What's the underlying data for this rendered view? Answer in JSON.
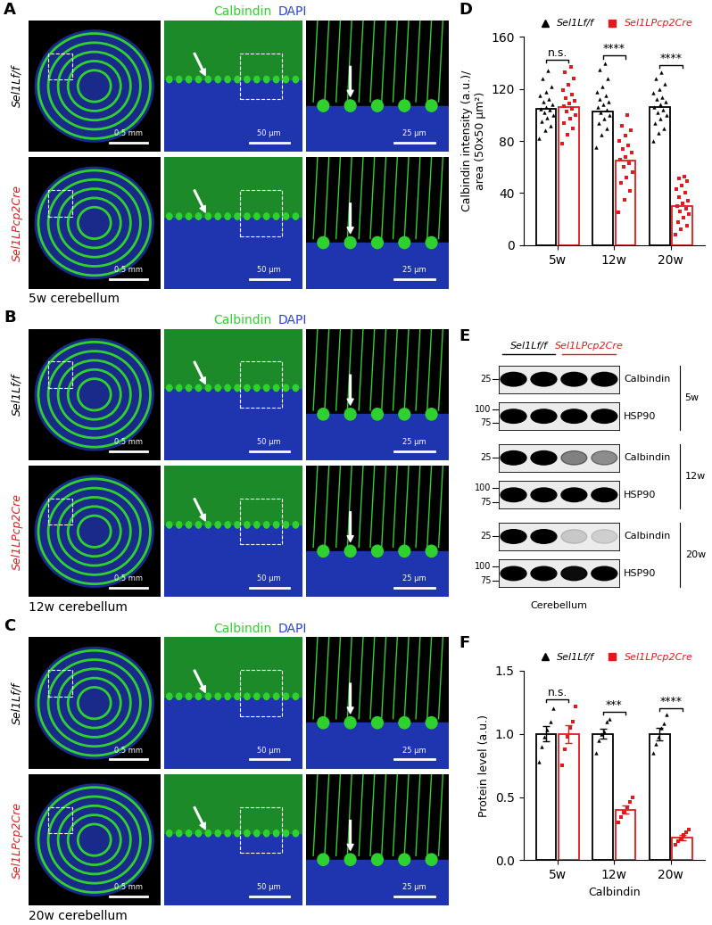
{
  "panel_letters": {
    "images": [
      "A",
      "B",
      "C"
    ],
    "blot": "E"
  },
  "image_panels": [
    {
      "stain": [
        {
          "text": "Calbindin",
          "color": "#2fd12f"
        },
        {
          "text": "DAPI",
          "color": "#2b3fe0"
        }
      ],
      "rows": [
        {
          "label": "Sel1Lf/f",
          "color": "#000000"
        },
        {
          "label": "Sel1LPcp2Cre",
          "color": "#e31a1c"
        }
      ],
      "scale_bars": [
        "0.5 mm",
        "50 μm",
        "25 μm"
      ],
      "caption": "5w cerebellum"
    },
    {
      "stain": [
        {
          "text": "Calbindin",
          "color": "#2fd12f"
        },
        {
          "text": "DAPI",
          "color": "#2b3fe0"
        }
      ],
      "rows": [
        {
          "label": "Sel1Lf/f",
          "color": "#000000"
        },
        {
          "label": "Sel1LPcp2Cre",
          "color": "#e31a1c"
        }
      ],
      "scale_bars": [
        "0.5 mm",
        "50 μm",
        "25 μm"
      ],
      "caption": "12w cerebellum"
    },
    {
      "stain": [
        {
          "text": "Calbindin",
          "color": "#2fd12f"
        },
        {
          "text": "DAPI",
          "color": "#2b3fe0"
        }
      ],
      "rows": [
        {
          "label": "Sel1Lf/f",
          "color": "#000000"
        },
        {
          "label": "Sel1LPcp2Cre",
          "color": "#e31a1c"
        }
      ],
      "scale_bars": [
        "0.5 mm",
        "50 μm",
        "25 μm"
      ],
      "caption": "20w cerebellum"
    }
  ],
  "blot": {
    "groups": [
      {
        "name": "Sel1Lf/f",
        "color": "#000000",
        "lanes": 2
      },
      {
        "name": "Sel1LPcp2Cre",
        "color": "#e31a1c",
        "lanes": 2
      }
    ],
    "timepoints": [
      {
        "label": "5w",
        "rows": [
          {
            "protein": "Calbindin",
            "markers": [
              25
            ],
            "band_intensity": [
              1.0,
              1.0,
              1.0,
              1.0
            ]
          },
          {
            "protein": "HSP90",
            "markers": [
              100,
              75
            ],
            "band_intensity": [
              1.0,
              1.0,
              1.0,
              1.0
            ]
          }
        ]
      },
      {
        "label": "12w",
        "rows": [
          {
            "protein": "Calbindin",
            "markers": [
              25
            ],
            "band_intensity": [
              1.0,
              1.0,
              0.45,
              0.4
            ]
          },
          {
            "protein": "HSP90",
            "markers": [
              100,
              75
            ],
            "band_intensity": [
              1.0,
              1.0,
              1.0,
              1.0
            ]
          }
        ]
      },
      {
        "label": "20w",
        "rows": [
          {
            "protein": "Calbindin",
            "markers": [
              25
            ],
            "band_intensity": [
              1.0,
              1.0,
              0.15,
              0.12
            ]
          },
          {
            "protein": "HSP90",
            "markers": [
              100,
              75
            ],
            "band_intensity": [
              1.0,
              1.0,
              0.95,
              1.0
            ]
          }
        ]
      }
    ],
    "tissue": "Cerebellum"
  },
  "chart_data": [
    {
      "letter": "D",
      "type": "bar",
      "ylabel": "Calbindin intensity (a.u.)/\narea (50x50 μm²)",
      "categories": [
        "5w",
        "12w",
        "20w"
      ],
      "ylim": [
        0,
        160
      ],
      "yticks": [
        0,
        40,
        80,
        120,
        160
      ],
      "legend": "top",
      "significance": [
        "n.s.",
        "****",
        "****"
      ],
      "series": [
        {
          "name": "Sel1Lf/f",
          "color": "#000000",
          "marker": "triangle",
          "values": [
            105,
            103,
            106
          ],
          "points": [
            [
              82,
              88,
              92,
              95,
              98,
              100,
              102,
              104,
              105,
              106,
              108,
              110,
              112,
              115,
              118,
              122,
              128,
              134
            ],
            [
              75,
              85,
              90,
              94,
              97,
              100,
              102,
              104,
              106,
              108,
              110,
              112,
              115,
              118,
              122,
              128,
              135,
              140
            ],
            [
              80,
              86,
              90,
              94,
              97,
              100,
              102,
              104,
              106,
              108,
              110,
              112,
              114,
              117,
              120,
              124,
              128,
              133
            ]
          ]
        },
        {
          "name": "Sel1LPcp2Cre",
          "color": "#e31a1c",
          "marker": "square",
          "values": [
            106,
            65,
            30
          ],
          "points": [
            [
              78,
              85,
              90,
              94,
              97,
              100,
              103,
              105,
              107,
              109,
              111,
              113,
              116,
              119,
              123,
              128,
              133,
              137
            ],
            [
              25,
              35,
              42,
              48,
              52,
              56,
              60,
              63,
              66,
              68,
              71,
              74,
              77,
              80,
              84,
              88,
              92,
              100
            ],
            [
              8,
              12,
              15,
              18,
              21,
              24,
              26,
              28,
              30,
              32,
              34,
              37,
              40,
              43,
              46,
              49,
              51,
              53
            ]
          ]
        }
      ]
    },
    {
      "letter": "F",
      "type": "bar",
      "ylabel": "Protein level (a.u.)",
      "xlabel": "Calbindin",
      "categories": [
        "5w",
        "12w",
        "20w"
      ],
      "ylim": [
        0.0,
        1.5
      ],
      "yticks": [
        0.0,
        0.5,
        1.0,
        1.5
      ],
      "legend": "top",
      "significance": [
        "n.s.",
        "***",
        "****"
      ],
      "series": [
        {
          "name": "Sel1Lf/f",
          "color": "#000000",
          "marker": "triangle",
          "values": [
            1.0,
            1.0,
            1.0
          ],
          "errors": [
            0.06,
            0.04,
            0.05
          ],
          "points": [
            [
              0.78,
              0.9,
              0.98,
              1.03,
              1.1,
              1.2
            ],
            [
              0.85,
              0.95,
              1.0,
              1.02,
              1.1,
              1.12
            ],
            [
              0.85,
              0.92,
              0.98,
              1.05,
              1.08,
              1.15
            ]
          ]
        },
        {
          "name": "Sel1LPcp2Cre",
          "color": "#e31a1c",
          "marker": "square",
          "values": [
            1.0,
            0.4,
            0.18
          ],
          "errors": [
            0.07,
            0.03,
            0.02
          ],
          "points": [
            [
              0.75,
              0.88,
              0.98,
              1.05,
              1.1,
              1.22
            ],
            [
              0.3,
              0.34,
              0.38,
              0.42,
              0.46,
              0.5
            ],
            [
              0.12,
              0.15,
              0.17,
              0.2,
              0.22,
              0.24
            ]
          ]
        }
      ]
    }
  ]
}
